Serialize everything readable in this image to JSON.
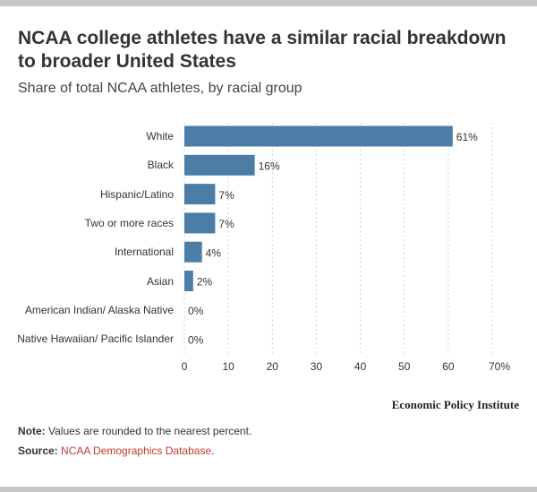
{
  "chart_data": {
    "type": "bar",
    "orientation": "horizontal",
    "title": "NCAA college athletes have a similar racial breakdown to broader United States",
    "subtitle": "Share of total NCAA athletes, by racial group",
    "categories": [
      "White",
      "Black",
      "Hispanic/Latino",
      "Two or more races",
      "International",
      "Asian",
      "American Indian/ Alaska Native",
      "Native Hawaiian/ Pacific Islander"
    ],
    "values": [
      61,
      16,
      7,
      7,
      4,
      2,
      0,
      0
    ],
    "value_labels": [
      "61%",
      "16%",
      "7%",
      "7%",
      "4%",
      "2%",
      "0%",
      "0%"
    ],
    "color": "#4b7da6",
    "xlim": [
      0,
      70
    ],
    "xticks": [
      0,
      10,
      20,
      30,
      40,
      50,
      60,
      {
        "value": 70,
        "label": "70%"
      }
    ],
    "grid": true,
    "credit": "Economic Policy Institute",
    "note_label": "Note:",
    "note": "Values are rounded to the nearest percent.",
    "source_label": "Source:",
    "source": "NCAA Demographics Database",
    "source_end": "."
  }
}
